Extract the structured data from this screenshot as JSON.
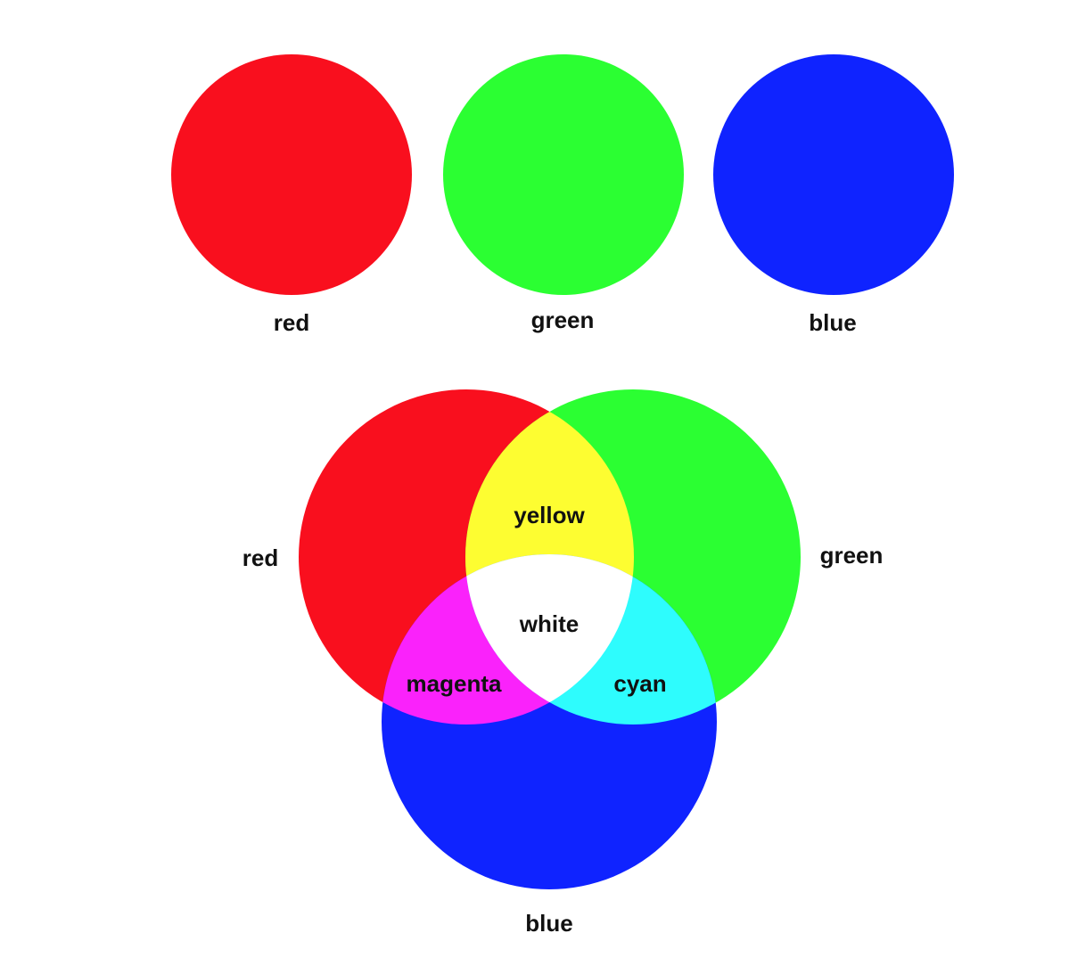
{
  "primaries": [
    {
      "label": "red",
      "color": "#f90f1e"
    },
    {
      "label": "green",
      "color": "#2bff32"
    },
    {
      "label": "blue",
      "color": "#0f23ff"
    }
  ],
  "mixing": {
    "circle_labels": {
      "red": "red",
      "green": "green",
      "blue": "blue"
    },
    "overlap_labels": {
      "yellow": "yellow",
      "magenta": "magenta",
      "cyan": "cyan",
      "white": "white"
    },
    "colors": {
      "red": "#f90f1e",
      "green": "#2bff32",
      "blue": "#0f23ff",
      "yellow": "#fdfd31",
      "magenta": "#fa22fb",
      "cyan": "#2efcfd",
      "white": "#ffffff"
    }
  }
}
